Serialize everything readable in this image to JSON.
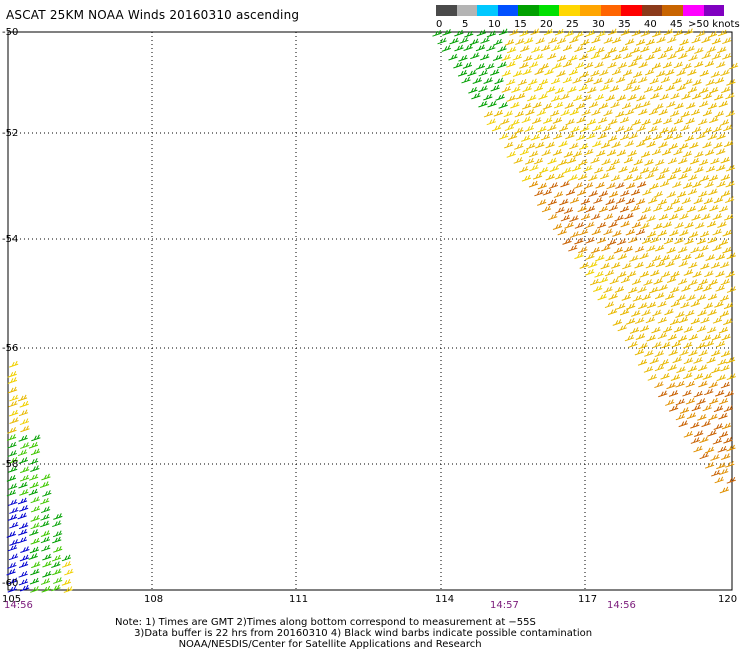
{
  "title": "ASCAT 25KM NOAA Winds 20160310 ascending",
  "legend": {
    "colors": [
      "#4a4a4a",
      "#b4b4b4",
      "#00c8ff",
      "#0050ff",
      "#00a000",
      "#00e000",
      "#ffd700",
      "#ffa500",
      "#ff6400",
      "#ff0000",
      "#8b3a1a",
      "#c86400",
      "#ff00ff",
      "#8000c0"
    ],
    "labels": [
      "0",
      "5",
      "10",
      "15",
      "20",
      "25",
      "30",
      "35",
      "40",
      "45"
    ],
    "unit": ">50 knots"
  },
  "axes": {
    "lat_labels": [
      "-50",
      "-52",
      "-54",
      "-56",
      "-58",
      "-60"
    ],
    "lon_labels": [
      "105",
      "108",
      "111",
      "114",
      "117",
      "120"
    ]
  },
  "times": [
    "14:56",
    "14:57",
    "14:56"
  ],
  "notes": [
    "Note: 1) Times are GMT 2)Times along bottom correspond to measurement at −55S",
    "      3)Data buffer is 22 hrs from 20160310 4) Black wind barbs indicate possible contamination",
    "                    NOAA/NESDIS/Center for Satellite Applications and Research"
  ],
  "barb_colors": {
    "yellow": "#f0d000",
    "gold": "#e8b800",
    "orange": "#e09000",
    "darkorange": "#c86000",
    "green": "#00a000",
    "lightgreen": "#40c800",
    "blue": "#0000d0"
  }
}
